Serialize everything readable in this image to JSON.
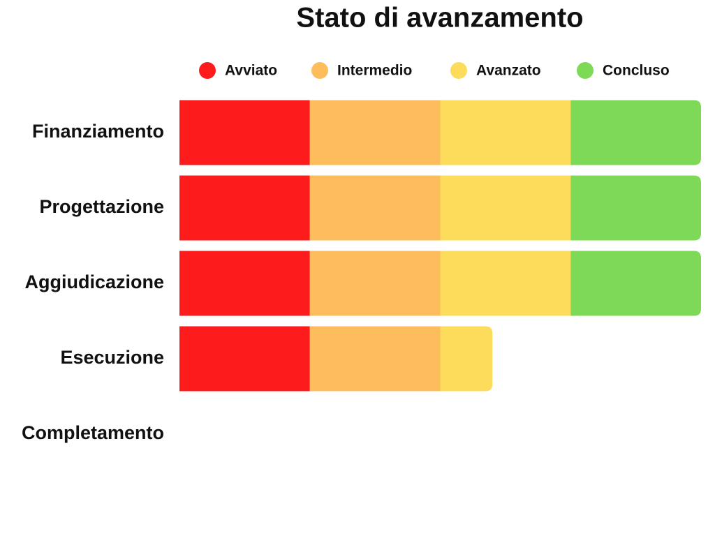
{
  "chart_data": {
    "type": "stacked-bar",
    "orientation": "horizontal",
    "title": "Stato di avanzamento",
    "categories": [
      "Finanziamento",
      "Progettazione",
      "Aggiudicazione",
      "Esecuzione",
      "Completamento"
    ],
    "series": [
      {
        "name": "Avviato",
        "color": "#fe1b1c",
        "values": [
          25,
          25,
          25,
          25,
          0
        ]
      },
      {
        "name": "Intermedio",
        "color": "#fdbd5c",
        "values": [
          25,
          25,
          25,
          25,
          0
        ]
      },
      {
        "name": "Avanzato",
        "color": "#fddc5c",
        "values": [
          25,
          25,
          25,
          10,
          0
        ]
      },
      {
        "name": "Concluso",
        "color": "#7ed957",
        "values": [
          25,
          25,
          25,
          0,
          0
        ]
      }
    ],
    "xlim": [
      0,
      100
    ]
  }
}
